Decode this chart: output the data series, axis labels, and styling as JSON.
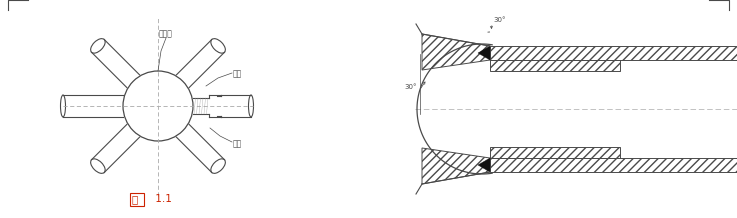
{
  "title": "图 1.1",
  "label_kongxinqiu": "空心球",
  "label_gangguan": "钢管",
  "label_taoguan": "套管",
  "label_angle_top": "30°",
  "label_angle_left": "30°",
  "bg_color": "#ffffff",
  "line_color": "#4a4a4a",
  "black_fill": "#111111",
  "dash_color": "#aaaaaa",
  "fig_label_color": "#cc2200",
  "fig_width": 7.37,
  "fig_height": 2.18
}
